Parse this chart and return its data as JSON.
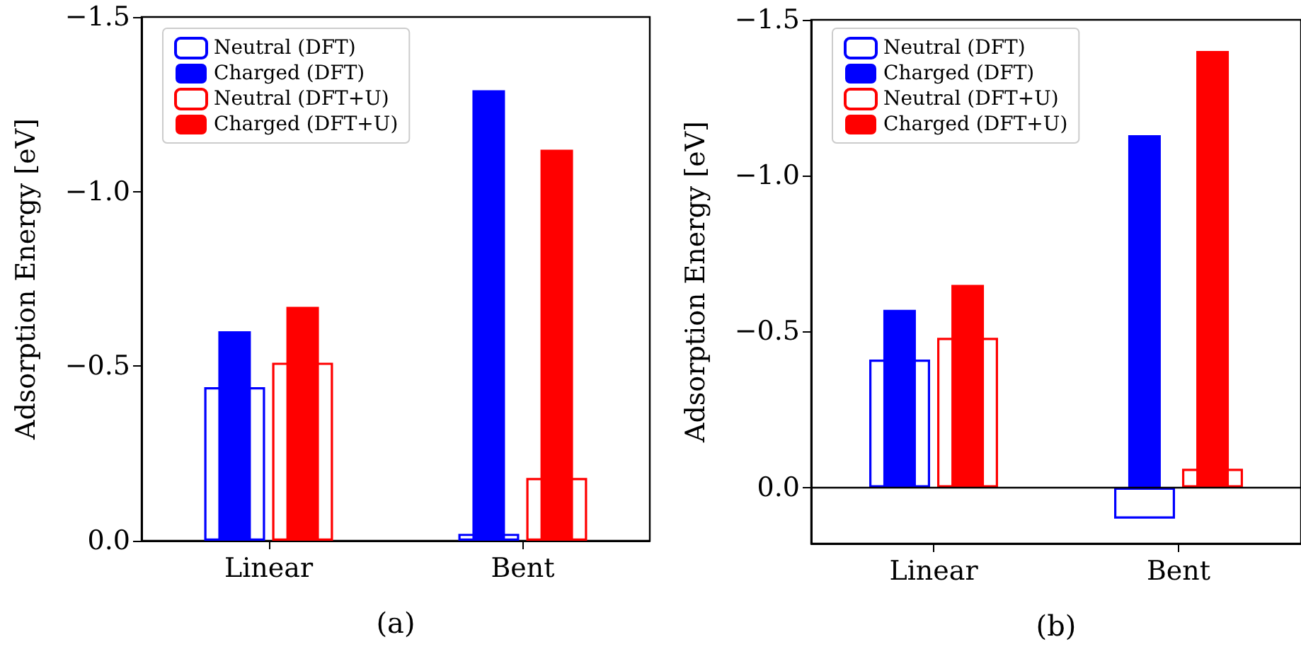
{
  "chart_data": [
    {
      "type": "bar",
      "xlabel": "(a)",
      "ylabel": "Adsorption Energy [eV]",
      "categories": [
        "Linear",
        "Bent"
      ],
      "series": [
        {
          "name": "Neutral (DFT)",
          "color": "#0000ff",
          "values": [
            -0.44,
            -0.02
          ]
        },
        {
          "name": "Charged (DFT)",
          "color": "#0000ff",
          "values": [
            -0.6,
            -1.29
          ]
        },
        {
          "name": "Neutral (DFT+U)",
          "color": "#ff0000",
          "values": [
            -0.51,
            -0.18
          ]
        },
        {
          "name": "Charged (DFT+U)",
          "color": "#ff0000",
          "values": [
            -0.67,
            -1.12
          ]
        }
      ],
      "ylim": [
        0,
        -1.5
      ],
      "yticks": [
        {
          "value": 0,
          "label": "0.0"
        },
        {
          "value": -0.5,
          "label": "−0.5"
        },
        {
          "value": -1.0,
          "label": "−1.0"
        },
        {
          "value": -1.5,
          "label": "−1.5"
        }
      ],
      "grid": false,
      "legend": "top left"
    },
    {
      "type": "bar",
      "xlabel": "(b)",
      "ylabel": "Adsorption Energy [eV]",
      "categories": [
        "Linear",
        "Bent"
      ],
      "series": [
        {
          "name": "Neutral (DFT)",
          "color": "#0000ff",
          "values": [
            -0.41,
            0.1
          ]
        },
        {
          "name": "Charged (DFT)",
          "color": "#0000ff",
          "values": [
            -0.57,
            -1.13
          ]
        },
        {
          "name": "Neutral (DFT+U)",
          "color": "#ff0000",
          "values": [
            -0.48,
            -0.06
          ]
        },
        {
          "name": "Charged (DFT+U)",
          "color": "#ff0000",
          "values": [
            -0.65,
            -1.4
          ]
        }
      ],
      "ylim": [
        0.18,
        -1.5
      ],
      "yticks": [
        {
          "value": 0,
          "label": "0.0"
        },
        {
          "value": -0.5,
          "label": "−0.5"
        },
        {
          "value": -1.0,
          "label": "−1.0"
        },
        {
          "value": -1.5,
          "label": "−1.5"
        }
      ],
      "ref_lines": [
        {
          "axis": "y",
          "value": 0,
          "color": "#000000"
        }
      ],
      "grid": false,
      "legend": "top left"
    }
  ]
}
